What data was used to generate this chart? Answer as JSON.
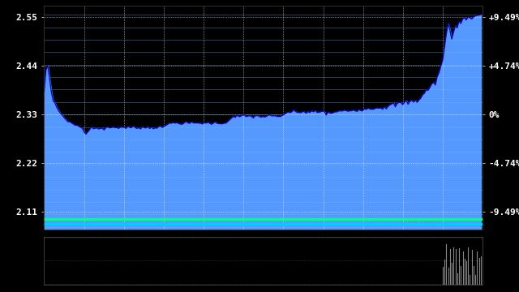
{
  "background_color": "#000000",
  "plot_bg_color": "#000000",
  "fill_color": "#5599ff",
  "fill_color_alpha": 1.0,
  "line_color": "#0000cc",
  "yticks_left": [
    2.11,
    2.22,
    2.33,
    2.44,
    2.55
  ],
  "yticks_left_colors": [
    "red",
    "red",
    "white",
    "green",
    "green"
  ],
  "yticks_right_labels": [
    "-9.49%",
    "-4.74%",
    "0%",
    "+4.74%",
    "+9.49%"
  ],
  "yticks_right_colors": [
    "red",
    "red",
    "white",
    "green",
    "green"
  ],
  "ylim": [
    2.07,
    2.575
  ],
  "xlim_main": [
    0,
    241
  ],
  "grid_color": "#ffffff",
  "ref_price": 2.33,
  "sina_watermark": "sina.com",
  "bottom_line1_y": 2.093,
  "bottom_line1_color": "#00ff88",
  "bottom_line2_y": 2.082,
  "bottom_line2_color": "#00ccff",
  "stripe_color": "#7ab0ff",
  "stripe_alpha": 0.4,
  "n_stripes": 18,
  "n_vgrid": 10,
  "subplot_bg": "#000000",
  "vol_bar_color": "#888888"
}
